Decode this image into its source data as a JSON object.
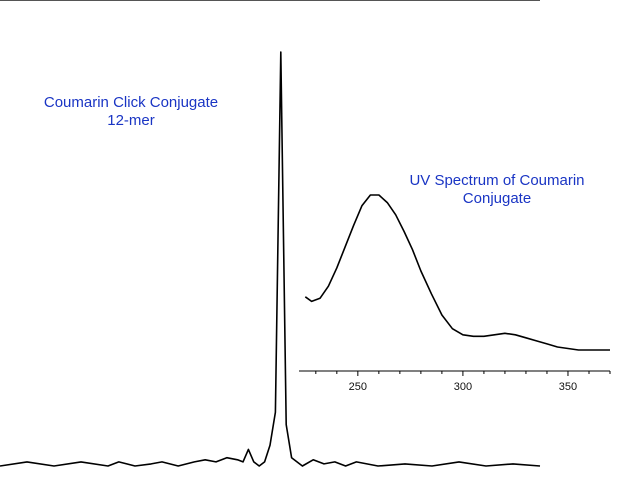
{
  "chart_data": [
    {
      "type": "line",
      "title": "Coumarin Click Conjugate 12-mer",
      "title_lines": [
        "Coumarin Click Conjugate",
        "12-mer"
      ],
      "xlabel": "",
      "ylabel": "",
      "axes_ticks_visible": false,
      "grid": false,
      "color": "#000000",
      "x": [
        0,
        5,
        10,
        15,
        20,
        22,
        25,
        28,
        30,
        33,
        36,
        38,
        40,
        42,
        44,
        45,
        46,
        47,
        48,
        49,
        50,
        51,
        52,
        53,
        54,
        55,
        56,
        58,
        60,
        62,
        64,
        66,
        70,
        75,
        80,
        85,
        90,
        95,
        100
      ],
      "y": [
        0.0,
        0.01,
        0.0,
        0.01,
        0.0,
        0.01,
        0.0,
        0.005,
        0.01,
        0.0,
        0.01,
        0.015,
        0.01,
        0.02,
        0.015,
        0.01,
        0.04,
        0.01,
        0.0,
        0.01,
        0.05,
        0.13,
        1.0,
        0.1,
        0.02,
        0.01,
        0.0,
        0.015,
        0.005,
        0.01,
        0.0,
        0.01,
        0.0,
        0.005,
        0.0,
        0.01,
        0.0,
        0.005,
        0.0
      ]
    },
    {
      "type": "line",
      "title": "UV Spectrum of Coumarin Conjugate",
      "title_lines": [
        "UV Spectrum of Coumarin",
        "Conjugate"
      ],
      "xlabel": "",
      "ylabel": "",
      "xlim": [
        222,
        370
      ],
      "xticks": [
        250,
        300,
        350
      ],
      "grid": false,
      "color": "#000000",
      "x": [
        225,
        228,
        232,
        236,
        240,
        244,
        248,
        252,
        256,
        260,
        264,
        268,
        272,
        276,
        280,
        285,
        290,
        295,
        300,
        305,
        310,
        315,
        320,
        325,
        330,
        335,
        340,
        345,
        350,
        355,
        360,
        365,
        370
      ],
      "y": [
        0.33,
        0.3,
        0.32,
        0.4,
        0.52,
        0.66,
        0.8,
        0.93,
        1.0,
        1.0,
        0.95,
        0.87,
        0.76,
        0.64,
        0.5,
        0.35,
        0.21,
        0.12,
        0.08,
        0.07,
        0.07,
        0.08,
        0.09,
        0.08,
        0.06,
        0.04,
        0.02,
        0.0,
        -0.01,
        -0.02,
        -0.02,
        -0.02,
        -0.02
      ]
    }
  ]
}
